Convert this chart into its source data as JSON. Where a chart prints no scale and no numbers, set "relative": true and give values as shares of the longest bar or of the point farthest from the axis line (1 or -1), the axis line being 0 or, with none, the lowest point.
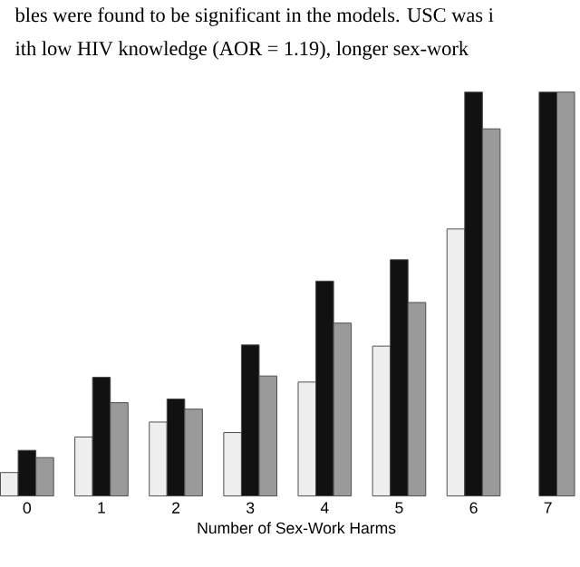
{
  "chart_data": {
    "type": "bar",
    "relative": true,
    "xlabel": "Number of Sex-Work Harms",
    "categories": [
      "0",
      "1",
      "2",
      "3",
      "4",
      "5",
      "6",
      "7"
    ],
    "series": [
      {
        "color": "#eeeeee",
        "values": [
          0.058,
          0.146,
          0.183,
          0.157,
          0.282,
          0.371,
          0.661,
          null
        ]
      },
      {
        "color": "#111111",
        "values": [
          0.113,
          0.294,
          0.24,
          0.374,
          0.532,
          0.585,
          1,
          1
        ]
      },
      {
        "color": "#9a9a9a",
        "values": [
          0.095,
          0.231,
          0.215,
          0.297,
          0.428,
          0.479,
          0.909,
          1
        ]
      }
    ],
    "annotations": [
      "bles were found to be significant in the models. USC was i",
      "ith low HIV knowledge (AOR = 1.19), longer sex-work"
    ]
  }
}
